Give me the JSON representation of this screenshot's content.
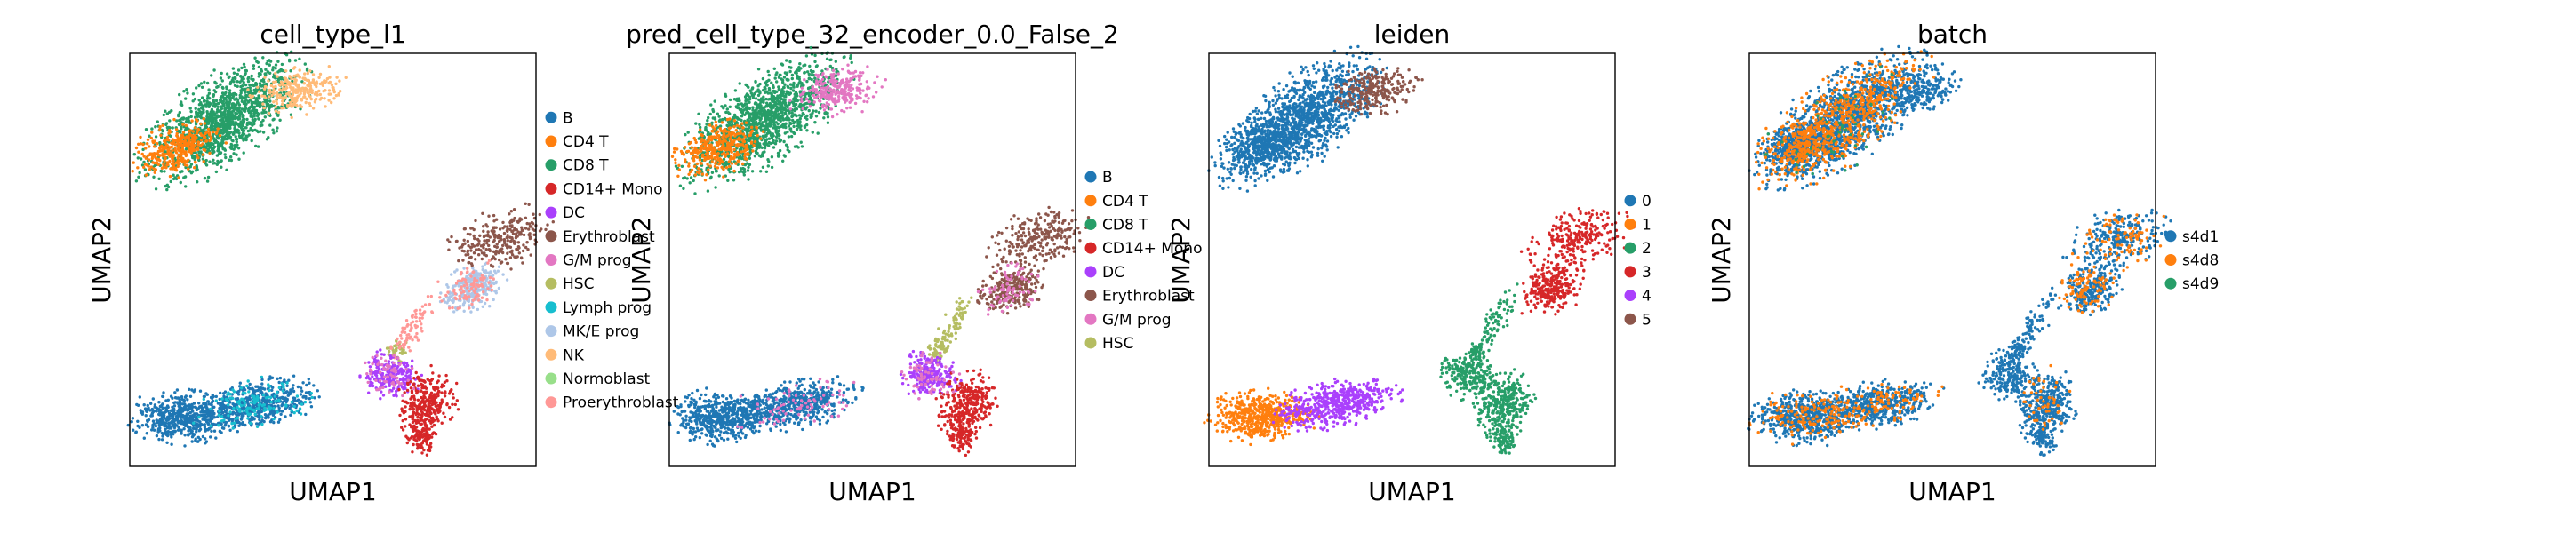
{
  "chart_data": [
    {
      "type": "scatter",
      "title": "cell_type_l1",
      "xlabel": "UMAP1",
      "ylabel": "UMAP2",
      "grid": false,
      "legend_position": "right",
      "series": [
        {
          "name": "B",
          "color": "#1f77b4"
        },
        {
          "name": "CD4 T",
          "color": "#ff7f0e"
        },
        {
          "name": "CD8 T",
          "color": "#279e68"
        },
        {
          "name": "CD14+ Mono",
          "color": "#d62728"
        },
        {
          "name": "DC",
          "color": "#aa40fc"
        },
        {
          "name": "Erythroblast",
          "color": "#8c564b"
        },
        {
          "name": "G/M prog",
          "color": "#e377c2"
        },
        {
          "name": "HSC",
          "color": "#b5bd61"
        },
        {
          "name": "Lymph prog",
          "color": "#17becf"
        },
        {
          "name": "MK/E prog",
          "color": "#aec7e8"
        },
        {
          "name": "NK",
          "color": "#ffbb78"
        },
        {
          "name": "Normoblast",
          "color": "#98df8a"
        },
        {
          "name": "Proerythroblast",
          "color": "#ff9896"
        }
      ]
    },
    {
      "type": "scatter",
      "title": "pred_cell_type_32_encoder_0.0_False_2",
      "xlabel": "UMAP1",
      "ylabel": "UMAP2",
      "grid": false,
      "legend_position": "right",
      "series": [
        {
          "name": "B",
          "color": "#1f77b4"
        },
        {
          "name": "CD4 T",
          "color": "#ff7f0e"
        },
        {
          "name": "CD8 T",
          "color": "#279e68"
        },
        {
          "name": "CD14+ Mono",
          "color": "#d62728"
        },
        {
          "name": "DC",
          "color": "#aa40fc"
        },
        {
          "name": "Erythroblast",
          "color": "#8c564b"
        },
        {
          "name": "G/M prog",
          "color": "#e377c2"
        },
        {
          "name": "HSC",
          "color": "#b5bd61"
        }
      ]
    },
    {
      "type": "scatter",
      "title": "leiden",
      "xlabel": "UMAP1",
      "ylabel": "UMAP2",
      "grid": false,
      "legend_position": "right",
      "series": [
        {
          "name": "0",
          "color": "#1f77b4"
        },
        {
          "name": "1",
          "color": "#ff7f0e"
        },
        {
          "name": "2",
          "color": "#279e68"
        },
        {
          "name": "3",
          "color": "#d62728"
        },
        {
          "name": "4",
          "color": "#aa40fc"
        },
        {
          "name": "5",
          "color": "#8c564b"
        }
      ]
    },
    {
      "type": "scatter",
      "title": "batch",
      "xlabel": "UMAP1",
      "ylabel": "UMAP2",
      "grid": false,
      "legend_position": "right",
      "series": [
        {
          "name": "s4d1",
          "color": "#1f77b4"
        },
        {
          "name": "s4d8",
          "color": "#ff7f0e"
        },
        {
          "name": "s4d9",
          "color": "#279e68"
        }
      ]
    }
  ]
}
